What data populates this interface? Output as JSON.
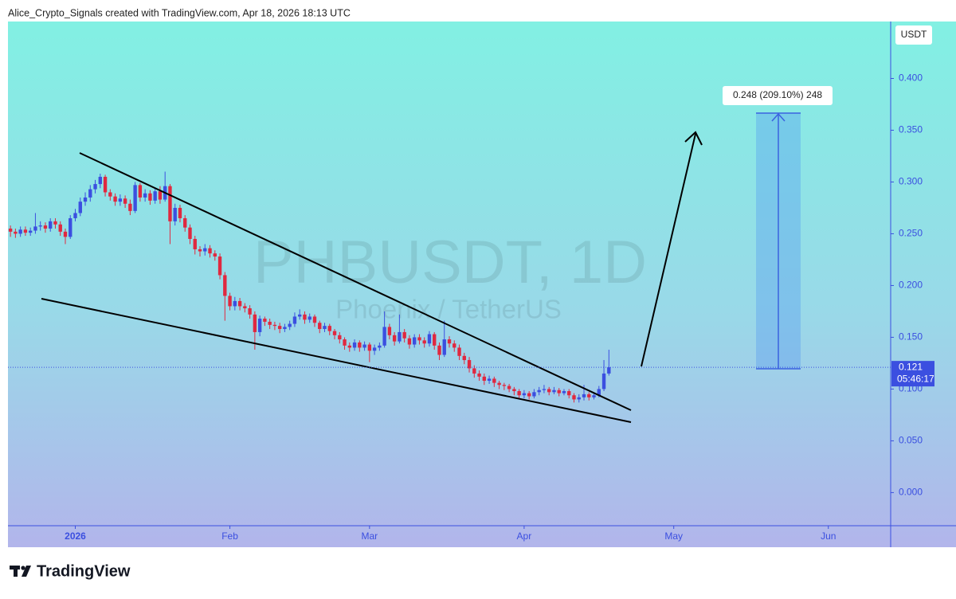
{
  "header": {
    "attribution": "Alice_Crypto_Signals created with TradingView.com, Apr 18, 2026 18:13 UTC"
  },
  "logo": "TradingView",
  "chart_data": {
    "type": "candlestick",
    "title": "PHBUSDT, 1D",
    "subtitle": "Phoenix / TetherUS",
    "currency": "USDT",
    "up_color": "#3b4fe0",
    "down_color": "#e0283f",
    "open": [
      0.255,
      0.252,
      0.25,
      0.254,
      0.251,
      0.253,
      0.257,
      0.258,
      0.255,
      0.262,
      0.259,
      0.252,
      0.247,
      0.265,
      0.27,
      0.281,
      0.285,
      0.293,
      0.298,
      0.305,
      0.29,
      0.286,
      0.281,
      0.284,
      0.279,
      0.272,
      0.297,
      0.285,
      0.289,
      0.282,
      0.291,
      0.283,
      0.296,
      0.262,
      0.275,
      0.265,
      0.256,
      0.245,
      0.235,
      0.233,
      0.236,
      0.231,
      0.228,
      0.21,
      0.19,
      0.18,
      0.185,
      0.18,
      0.178,
      0.172,
      0.155,
      0.168,
      0.165,
      0.162,
      0.161,
      0.158,
      0.16,
      0.163,
      0.17,
      0.172,
      0.167,
      0.17,
      0.164,
      0.158,
      0.161,
      0.156,
      0.152,
      0.148,
      0.142,
      0.14,
      0.145,
      0.14,
      0.143,
      0.137,
      0.14,
      0.142,
      0.16,
      0.152,
      0.146,
      0.155,
      0.149,
      0.143,
      0.15,
      0.147,
      0.144,
      0.153,
      0.142,
      0.133,
      0.148,
      0.144,
      0.14,
      0.132,
      0.128,
      0.12,
      0.115,
      0.112,
      0.108,
      0.11,
      0.106,
      0.104,
      0.103,
      0.1,
      0.098,
      0.094,
      0.096,
      0.093,
      0.097,
      0.099,
      0.1,
      0.097,
      0.099,
      0.096,
      0.098,
      0.094,
      0.09,
      0.092,
      0.095,
      0.092,
      0.094,
      0.1,
      0.115
    ],
    "high": [
      0.258,
      0.255,
      0.257,
      0.257,
      0.256,
      0.27,
      0.262,
      0.261,
      0.265,
      0.265,
      0.262,
      0.255,
      0.268,
      0.274,
      0.285,
      0.29,
      0.297,
      0.302,
      0.308,
      0.307,
      0.293,
      0.289,
      0.288,
      0.287,
      0.283,
      0.3,
      0.299,
      0.293,
      0.292,
      0.294,
      0.296,
      0.31,
      0.298,
      0.279,
      0.278,
      0.268,
      0.259,
      0.248,
      0.238,
      0.24,
      0.239,
      0.234,
      0.231,
      0.213,
      0.193,
      0.189,
      0.188,
      0.183,
      0.181,
      0.175,
      0.171,
      0.17,
      0.168,
      0.165,
      0.164,
      0.163,
      0.166,
      0.174,
      0.177,
      0.175,
      0.173,
      0.172,
      0.166,
      0.164,
      0.163,
      0.158,
      0.155,
      0.15,
      0.145,
      0.148,
      0.147,
      0.146,
      0.145,
      0.143,
      0.145,
      0.175,
      0.163,
      0.155,
      0.172,
      0.158,
      0.152,
      0.153,
      0.153,
      0.15,
      0.156,
      0.155,
      0.145,
      0.166,
      0.151,
      0.147,
      0.143,
      0.135,
      0.131,
      0.123,
      0.118,
      0.115,
      0.113,
      0.112,
      0.108,
      0.106,
      0.105,
      0.102,
      0.1,
      0.099,
      0.098,
      0.1,
      0.102,
      0.104,
      0.102,
      0.102,
      0.101,
      0.1,
      0.1,
      0.096,
      0.095,
      0.104,
      0.097,
      0.097,
      0.103,
      0.128,
      0.138
    ],
    "low": [
      0.247,
      0.246,
      0.247,
      0.248,
      0.248,
      0.25,
      0.253,
      0.251,
      0.252,
      0.255,
      0.248,
      0.24,
      0.245,
      0.262,
      0.267,
      0.277,
      0.281,
      0.289,
      0.294,
      0.286,
      0.282,
      0.277,
      0.277,
      0.275,
      0.268,
      0.27,
      0.281,
      0.281,
      0.278,
      0.279,
      0.279,
      0.281,
      0.24,
      0.258,
      0.261,
      0.252,
      0.24,
      0.23,
      0.228,
      0.229,
      0.227,
      0.224,
      0.206,
      0.166,
      0.176,
      0.176,
      0.176,
      0.174,
      0.168,
      0.138,
      0.151,
      0.161,
      0.158,
      0.157,
      0.154,
      0.155,
      0.157,
      0.16,
      0.167,
      0.163,
      0.164,
      0.16,
      0.154,
      0.155,
      0.152,
      0.148,
      0.144,
      0.138,
      0.136,
      0.137,
      0.136,
      0.137,
      0.126,
      0.133,
      0.137,
      0.14,
      0.148,
      0.142,
      0.144,
      0.145,
      0.139,
      0.14,
      0.143,
      0.14,
      0.141,
      0.138,
      0.128,
      0.131,
      0.14,
      0.136,
      0.128,
      0.124,
      0.116,
      0.111,
      0.108,
      0.104,
      0.105,
      0.102,
      0.1,
      0.099,
      0.097,
      0.094,
      0.091,
      0.091,
      0.09,
      0.091,
      0.094,
      0.096,
      0.094,
      0.095,
      0.093,
      0.094,
      0.091,
      0.087,
      0.087,
      0.089,
      0.089,
      0.09,
      0.092,
      0.098,
      0.113
    ],
    "close": [
      0.252,
      0.25,
      0.254,
      0.251,
      0.253,
      0.257,
      0.258,
      0.255,
      0.262,
      0.259,
      0.252,
      0.247,
      0.265,
      0.27,
      0.281,
      0.285,
      0.293,
      0.298,
      0.305,
      0.29,
      0.286,
      0.281,
      0.284,
      0.279,
      0.272,
      0.297,
      0.285,
      0.289,
      0.282,
      0.291,
      0.283,
      0.296,
      0.262,
      0.275,
      0.265,
      0.256,
      0.245,
      0.235,
      0.233,
      0.236,
      0.231,
      0.228,
      0.21,
      0.19,
      0.18,
      0.185,
      0.18,
      0.178,
      0.172,
      0.155,
      0.168,
      0.165,
      0.162,
      0.161,
      0.158,
      0.16,
      0.163,
      0.17,
      0.172,
      0.167,
      0.17,
      0.164,
      0.158,
      0.161,
      0.156,
      0.152,
      0.148,
      0.142,
      0.14,
      0.145,
      0.14,
      0.143,
      0.137,
      0.14,
      0.142,
      0.16,
      0.152,
      0.146,
      0.155,
      0.149,
      0.143,
      0.15,
      0.147,
      0.144,
      0.153,
      0.142,
      0.133,
      0.148,
      0.144,
      0.14,
      0.132,
      0.128,
      0.12,
      0.115,
      0.112,
      0.108,
      0.11,
      0.106,
      0.104,
      0.103,
      0.1,
      0.098,
      0.094,
      0.096,
      0.093,
      0.097,
      0.099,
      0.1,
      0.097,
      0.099,
      0.096,
      0.098,
      0.094,
      0.09,
      0.092,
      0.095,
      0.092,
      0.094,
      0.1,
      0.115,
      0.121
    ],
    "xlim": [
      -0.5,
      176.5
    ],
    "xticks": [
      {
        "value": 13,
        "label": "2026"
      },
      {
        "value": 44,
        "label": "Feb"
      },
      {
        "value": 72,
        "label": "Mar"
      },
      {
        "value": 103,
        "label": "Apr"
      },
      {
        "value": 133,
        "label": "May"
      },
      {
        "value": 164,
        "label": "Jun"
      }
    ],
    "ylim": [
      -0.032,
      0.455
    ],
    "yticks": [
      {
        "value": 0,
        "label": "0.000"
      },
      {
        "value": 0.05,
        "label": "0.050"
      },
      {
        "value": 0.1,
        "label": "0.100"
      },
      {
        "value": 0.15,
        "label": "0.150"
      },
      {
        "value": 0.2,
        "label": "0.200"
      },
      {
        "value": 0.25,
        "label": "0.250"
      },
      {
        "value": 0.3,
        "label": "0.300"
      },
      {
        "value": 0.35,
        "label": "0.350"
      },
      {
        "value": 0.4,
        "label": "0.400"
      }
    ],
    "last_price": 0.121,
    "countdown": "05:46:17",
    "annotations": [
      "0.248 (209.10%) 248"
    ]
  }
}
